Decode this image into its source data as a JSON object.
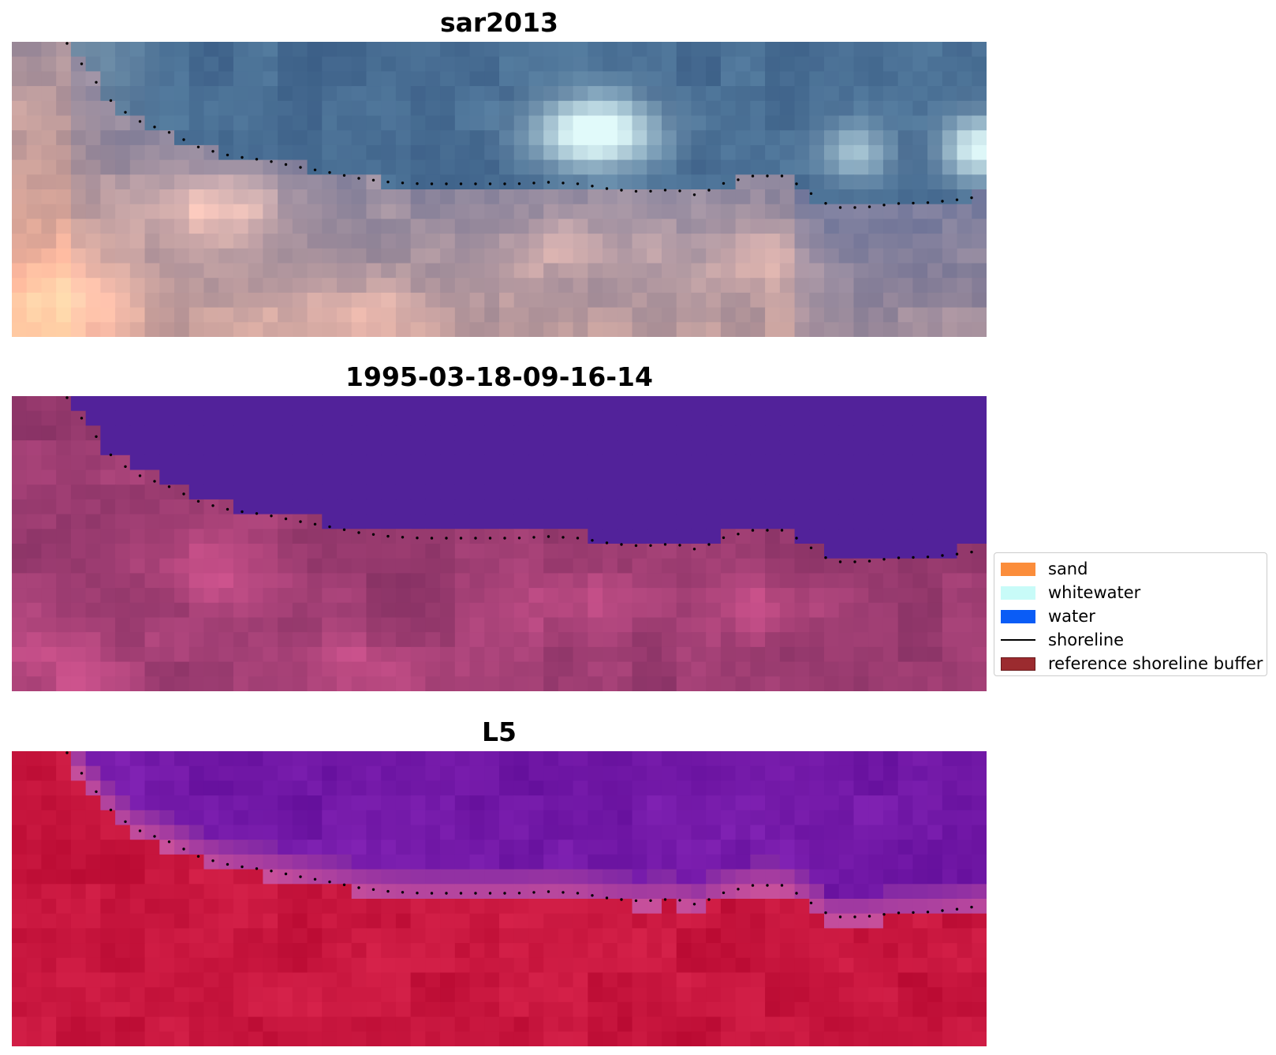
{
  "panels": [
    {
      "title": "sar2013",
      "colormap": "rgb"
    },
    {
      "title": "1995-03-18-09-16-14",
      "colormap": "classified"
    },
    {
      "title": "L5",
      "colormap": "index"
    }
  ],
  "legend": {
    "items": [
      {
        "label": "sand",
        "color": "#fb8d3b",
        "type": "patch"
      },
      {
        "label": "whitewater",
        "color": "#c8fbf8",
        "type": "patch"
      },
      {
        "label": "water",
        "color": "#0a5cf6",
        "type": "patch"
      },
      {
        "label": "shoreline",
        "color": "#000000",
        "type": "line"
      },
      {
        "label": "reference shoreline buffer",
        "color": "#9b2b2f",
        "type": "patch"
      }
    ]
  }
}
